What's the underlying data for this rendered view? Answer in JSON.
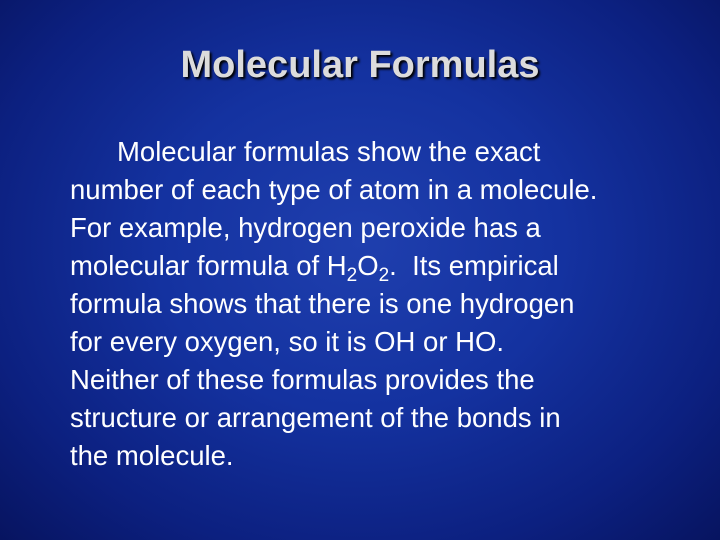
{
  "header": {
    "title": "Molecular Formulas"
  },
  "body": {
    "lines": [
      "Molecular formulas show the exact",
      "number of each type of atom in a molecule.",
      "For example, hydrogen peroxide has a",
      {
        "before": "molecular formula of H",
        "sub1": "2",
        "mid": "O",
        "sub2": "2",
        "after": ".  Its empirical"
      },
      "formula shows that there is one hydrogen",
      "for every oxygen, so it is OH or HO.",
      "Neither of these formulas provides the",
      "structure or arrangement of the bonds in",
      "the molecule."
    ]
  }
}
